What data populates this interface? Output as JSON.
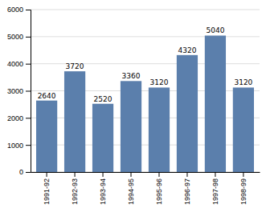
{
  "chart_data": {
    "type": "bar",
    "categories": [
      "1991-92",
      "1992-93",
      "1993-94",
      "1994-95",
      "1995-96",
      "1996-97",
      "1997-98",
      "1998-99"
    ],
    "values": [
      2640,
      3720,
      2520,
      3360,
      3120,
      4320,
      5040,
      3120
    ],
    "color": "#5b7fac",
    "ylim": [
      0,
      6000
    ],
    "yticks": [
      0,
      1000,
      2000,
      3000,
      4000,
      5000,
      6000
    ],
    "grid": true,
    "data_labels": true
  }
}
